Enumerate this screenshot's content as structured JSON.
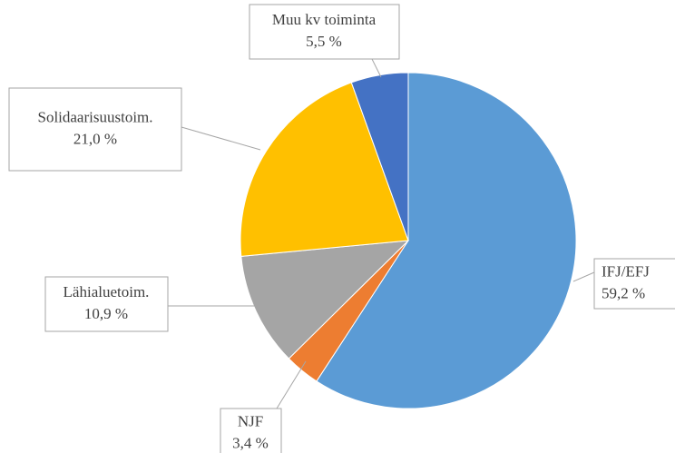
{
  "chart_data": {
    "type": "pie",
    "categories": [
      "IFJ/EFJ",
      "NJF",
      "Lähialuetoim.",
      "Solidaarisuustoim.",
      "Muu kv toiminta"
    ],
    "values": [
      59.2,
      3.4,
      10.9,
      21.0,
      5.5
    ],
    "value_labels": [
      "59,2 %",
      "3,4 %",
      "10,9 %",
      "21,0 %",
      "5,5 %"
    ],
    "colors": [
      "#5b9bd5",
      "#ed7d31",
      "#a5a5a5",
      "#ffc000",
      "#4472c4"
    ]
  }
}
